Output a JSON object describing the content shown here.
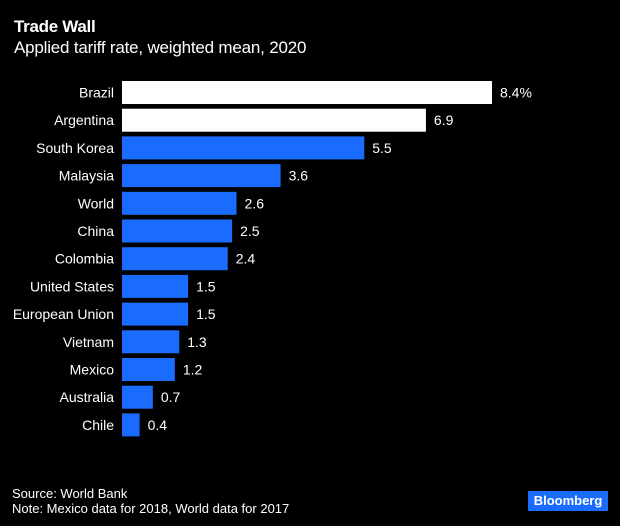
{
  "header": {
    "title": "Trade Wall",
    "subtitle": "Applied tariff rate, weighted mean, 2020"
  },
  "footer": {
    "source": "Source: World Bank",
    "note": "Note: Mexico data for 2018, World data for 2017",
    "logo": "Bloomberg"
  },
  "colors": {
    "background": "#000000",
    "highlight": "#ffffff",
    "default": "#1a6cff"
  },
  "chart_data": {
    "type": "bar",
    "orientation": "horizontal",
    "title": "Trade Wall",
    "subtitle": "Applied tariff rate, weighted mean, 2020",
    "xlabel": "",
    "ylabel": "",
    "unit": "%",
    "grid": false,
    "xlim": [
      0,
      8.4
    ],
    "categories": [
      "Brazil",
      "Argentina",
      "South Korea",
      "Malaysia",
      "World",
      "China",
      "Colombia",
      "United States",
      "European Union",
      "Vietnam",
      "Mexico",
      "Australia",
      "Chile"
    ],
    "values": [
      8.4,
      6.9,
      5.5,
      3.6,
      2.6,
      2.5,
      2.4,
      1.5,
      1.5,
      1.3,
      1.2,
      0.7,
      0.4
    ],
    "value_labels": [
      "8.4%",
      "6.9",
      "5.5",
      "3.6",
      "2.6",
      "2.5",
      "2.4",
      "1.5",
      "1.5",
      "1.3",
      "1.2",
      "0.7",
      "0.4"
    ],
    "highlighted": [
      "Brazil",
      "Argentina"
    ]
  }
}
